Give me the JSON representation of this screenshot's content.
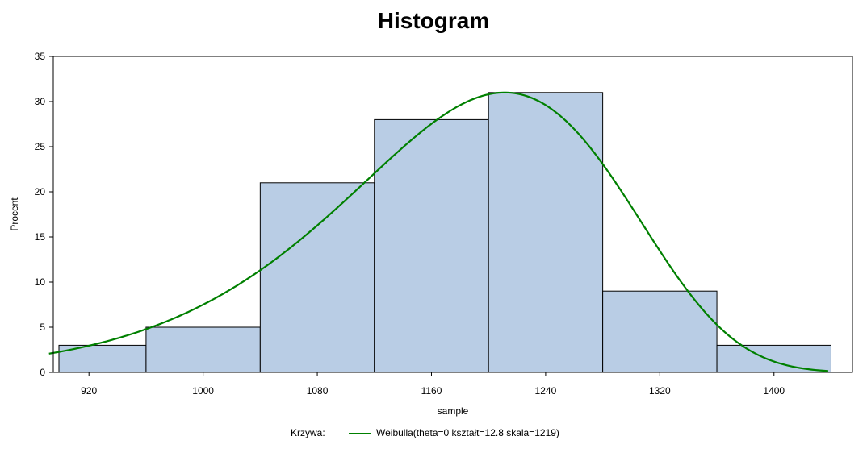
{
  "chart_data": {
    "type": "bar",
    "title": "Histogram",
    "xlabel": "sample",
    "ylabel": "Procent",
    "xlim": [
      895,
      1455
    ],
    "ylim": [
      0,
      35
    ],
    "xticks": [
      920,
      1000,
      1080,
      1160,
      1240,
      1320,
      1400
    ],
    "yticks": [
      0,
      5,
      10,
      15,
      20,
      25,
      30,
      35
    ],
    "bins": [
      {
        "from": 880,
        "to": 960,
        "value": 3
      },
      {
        "from": 960,
        "to": 1040,
        "value": 5
      },
      {
        "from": 1040,
        "to": 1120,
        "value": 21
      },
      {
        "from": 1120,
        "to": 1200,
        "value": 28
      },
      {
        "from": 1200,
        "to": 1280,
        "value": 31
      },
      {
        "from": 1280,
        "to": 1360,
        "value": 9
      },
      {
        "from": 1360,
        "to": 1440,
        "value": 3
      }
    ],
    "bar_color": "#b9cde5",
    "curve": {
      "name": "Weibulla(theta=0 kształt=12.8 skala=1219)",
      "color": "#008000",
      "shape": 12.8,
      "scale": 1219,
      "theta": 0
    },
    "legend": {
      "title": "Krzywa:",
      "placement": "bottom"
    },
    "grid": false
  }
}
